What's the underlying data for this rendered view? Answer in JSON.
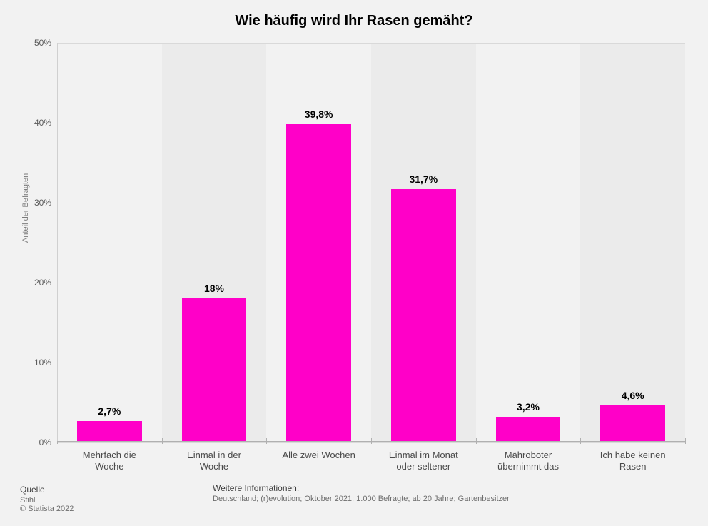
{
  "chart": {
    "type": "bar",
    "title": "Wie häufig wird Ihr Rasen gemäht?",
    "title_fontsize": 20,
    "title_fontweight": 700,
    "title_color": "#000000",
    "background_color": "#f2f2f2",
    "plot_stripe_color": "#ebebeb",
    "grid_color": "#d9d9d9",
    "axis_color": "#b0b0b0",
    "ylabel": "Anteil der Befragten",
    "ylabel_fontsize": 11,
    "ylabel_color": "#7a7a7a",
    "ylim_min": 0,
    "ylim_max": 50,
    "ytick_step": 10,
    "ytick_labels": [
      "0%",
      "10%",
      "20%",
      "30%",
      "40%",
      "50%"
    ],
    "ytick_fontsize": 12,
    "ytick_color": "#5a5a5a",
    "bar_color": "#ff00c8",
    "bar_width_ratio": 0.62,
    "bar_label_fontsize": 14,
    "bar_label_fontweight": 700,
    "bar_label_color": "#000000",
    "category_fontsize": 13,
    "category_color": "#4a4a4a",
    "categories": [
      {
        "label_line1": "Mehrfach die",
        "label_line2": "Woche",
        "value": 2.7,
        "value_label": "2,7%"
      },
      {
        "label_line1": "Einmal in der",
        "label_line2": "Woche",
        "value": 18,
        "value_label": "18%"
      },
      {
        "label_line1": "Alle zwei Wochen",
        "label_line2": "",
        "value": 39.8,
        "value_label": "39,8%"
      },
      {
        "label_line1": "Einmal im Monat",
        "label_line2": "oder seltener",
        "value": 31.7,
        "value_label": "31,7%"
      },
      {
        "label_line1": "Mähroboter",
        "label_line2": "übernimmt das",
        "value": 3.2,
        "value_label": "3,2%"
      },
      {
        "label_line1": "Ich habe keinen",
        "label_line2": "Rasen",
        "value": 4.6,
        "value_label": "4,6%"
      }
    ]
  },
  "footer": {
    "source_title": "Quelle",
    "source_name": "Stihl",
    "copyright": "© Statista 2022",
    "info_title": "Weitere Informationen:",
    "info_text": "Deutschland; (r)evolution; Oktober 2021; 1.000 Befragte; ab 20 Jahre; Gartenbesitzer",
    "fontsize_small": 11,
    "fontsize_title": 12,
    "color_text": "#6d6d6d",
    "color_title": "#3a3a3a"
  }
}
